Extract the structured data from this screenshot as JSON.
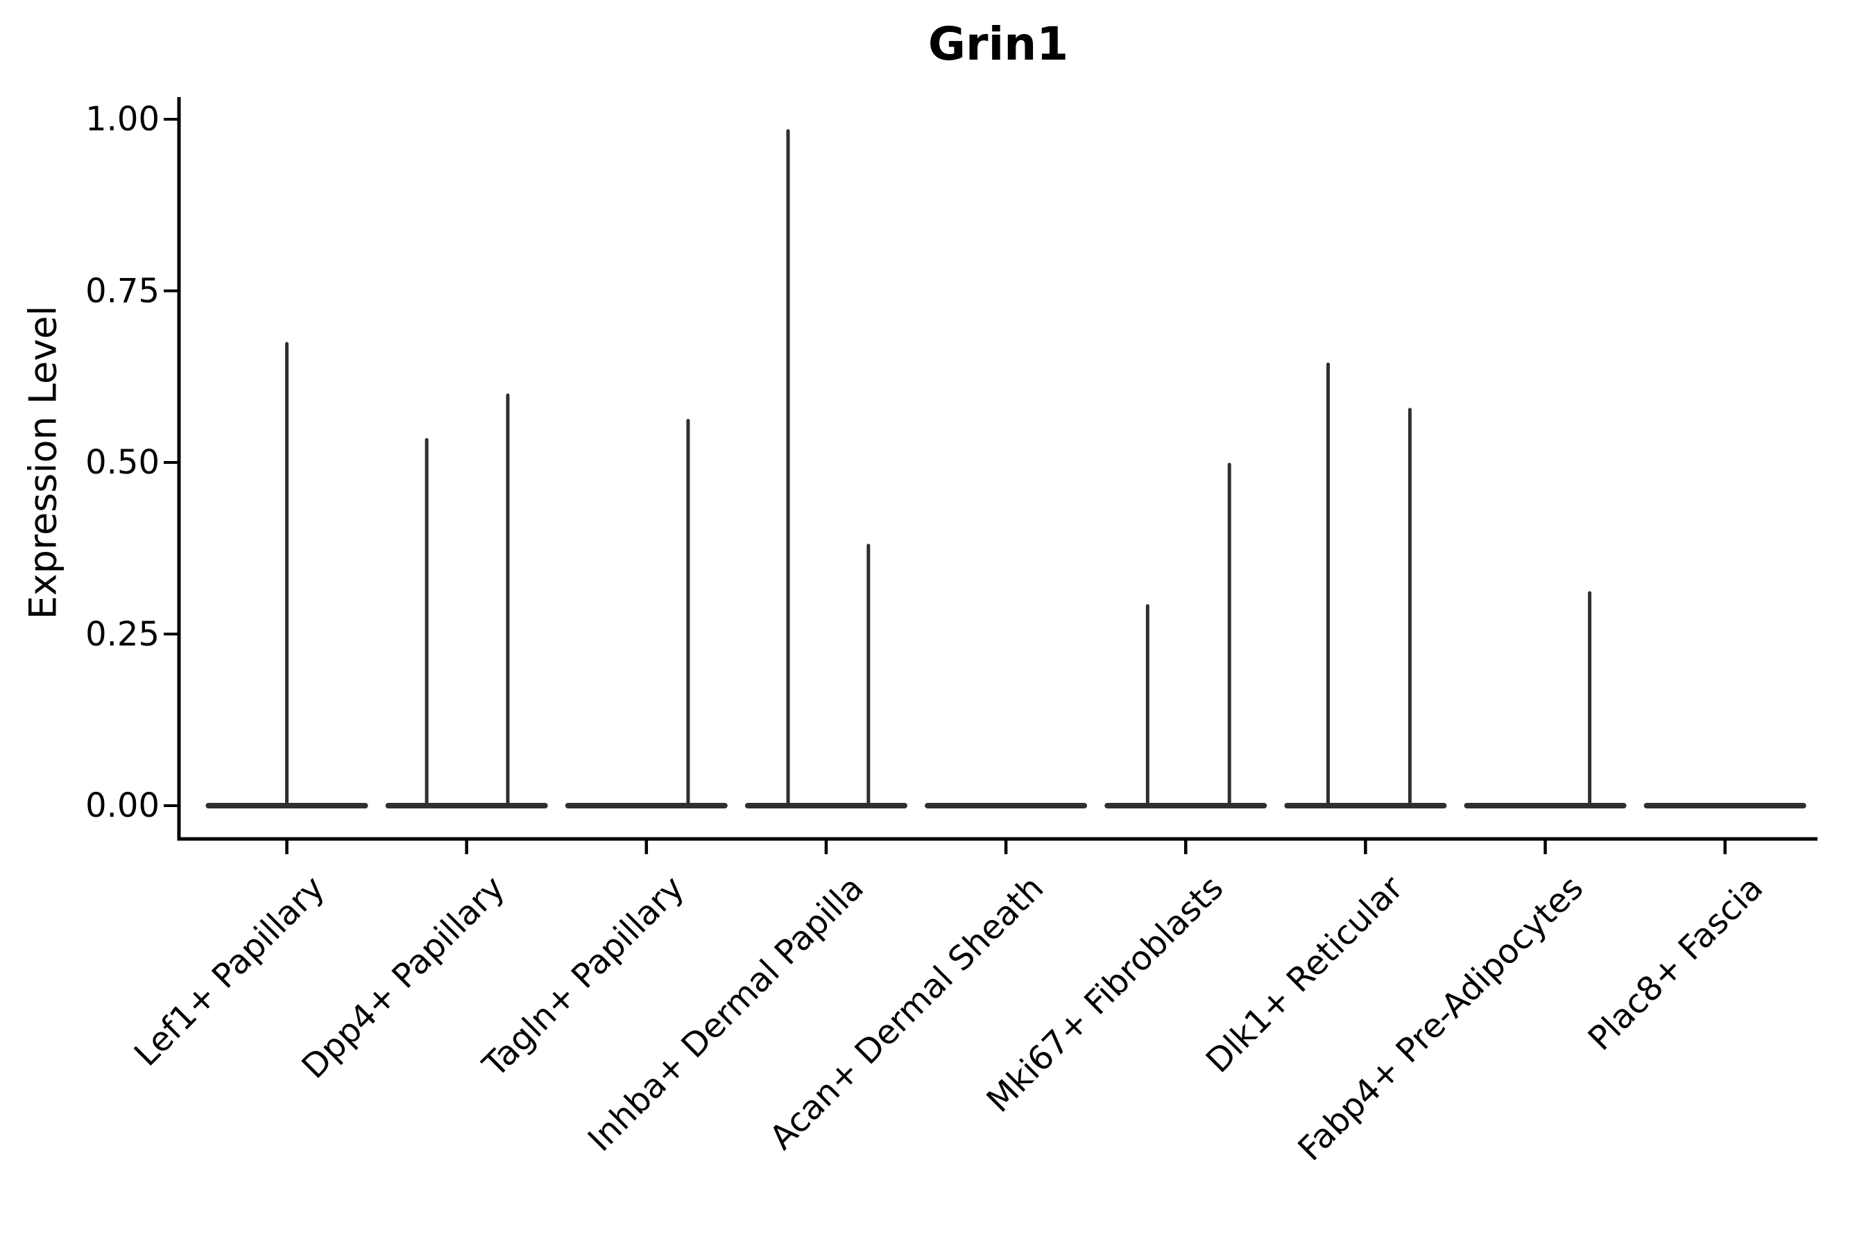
{
  "figure": {
    "background": "#ffffff",
    "axis_color": "#000000",
    "violin_color": "#2f2f2f",
    "text_color": "#000000"
  },
  "chart_data": {
    "type": "violin",
    "title": "Grin1",
    "xlabel": "",
    "ylabel": "Expression Level",
    "ylim": [
      -0.049,
      1.032
    ],
    "grid": false,
    "legend": null,
    "yticks": [
      0.0,
      0.25,
      0.5,
      0.75,
      1.0
    ],
    "ytick_labels": [
      "0.00",
      "0.25",
      "0.50",
      "0.75",
      "1.00"
    ],
    "categories": [
      "Lef1+ Papillary",
      "Dpp4+ Papillary",
      "Tagln+ Papillary",
      "Inhba+ Dermal Papilla",
      "Acan+ Dermal Sheath",
      "Mki67+ Fibroblasts",
      "Dlk1+ Reticular",
      "Fabp4+ Pre-Adipocytes",
      "Plac8+ Fascia"
    ],
    "violins": [
      {
        "category": "Lef1+ Papillary",
        "base_value": 0.0,
        "spikes": [
          {
            "offset": 0.0,
            "max": 0.673
          }
        ]
      },
      {
        "category": "Dpp4+ Papillary",
        "base_value": 0.0,
        "spikes": [
          {
            "offset": -0.222,
            "max": 0.533
          },
          {
            "offset": 0.229,
            "max": 0.598
          }
        ]
      },
      {
        "category": "Tagln+ Papillary",
        "base_value": 0.0,
        "spikes": [
          {
            "offset": 0.232,
            "max": 0.561
          }
        ]
      },
      {
        "category": "Inhba+ Dermal Papilla",
        "base_value": 0.0,
        "spikes": [
          {
            "offset": -0.212,
            "max": 0.983
          },
          {
            "offset": 0.235,
            "max": 0.379
          }
        ]
      },
      {
        "category": "Acan+ Dermal Sheath",
        "base_value": 0.0,
        "spikes": []
      },
      {
        "category": "Mki67+ Fibroblasts",
        "base_value": 0.0,
        "spikes": [
          {
            "offset": -0.212,
            "max": 0.291
          },
          {
            "offset": 0.243,
            "max": 0.497
          }
        ]
      },
      {
        "category": "Dlk1+ Reticular",
        "base_value": 0.0,
        "spikes": [
          {
            "offset": -0.208,
            "max": 0.643
          },
          {
            "offset": 0.247,
            "max": 0.577
          }
        ]
      },
      {
        "category": "Fabp4+ Pre-Adipocytes",
        "base_value": 0.0,
        "spikes": [
          {
            "offset": 0.247,
            "max": 0.31
          }
        ]
      },
      {
        "category": "Plac8+ Fascia",
        "base_value": 0.0,
        "spikes": []
      }
    ]
  }
}
